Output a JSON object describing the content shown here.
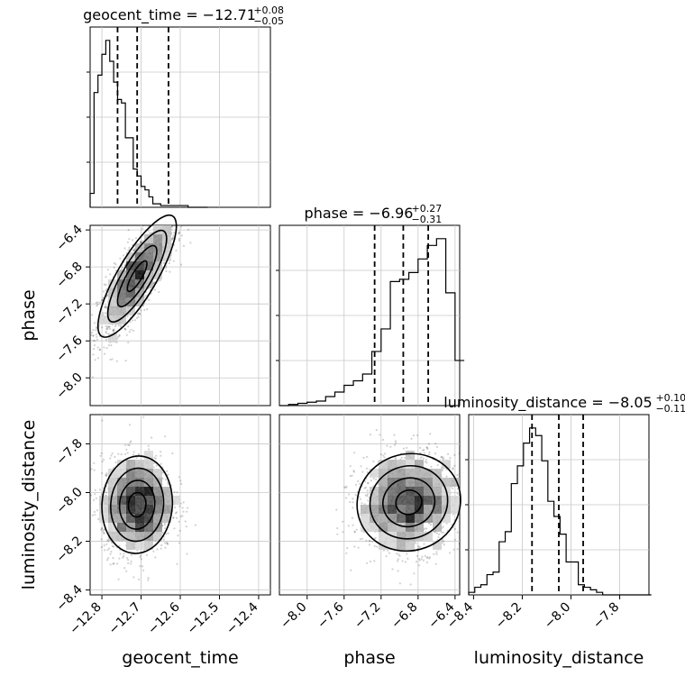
{
  "chart_data": {
    "type": "corner",
    "grid": true,
    "params": [
      {
        "name": "geocent_time",
        "label": "geocent_time",
        "range": [
          -12.83,
          -12.37
        ],
        "ticks": [
          -12.8,
          -12.7,
          -12.6,
          -12.5,
          -12.4
        ],
        "tick_labels": [
          "−12.8",
          "−12.7",
          "−12.6",
          "−12.5",
          "−12.4"
        ]
      },
      {
        "name": "phase",
        "label": "phase",
        "range": [
          -8.3,
          -6.35
        ],
        "ticks": [
          -8.0,
          -7.6,
          -7.2,
          -6.8,
          -6.4
        ],
        "tick_labels": [
          "−8.0",
          "−7.6",
          "−7.2",
          "−6.8",
          "−6.4"
        ]
      },
      {
        "name": "luminosity_distance",
        "label": "luminosity_distance",
        "range": [
          -8.42,
          -7.68
        ],
        "ticks": [
          -8.4,
          -8.2,
          -8.0,
          -7.8
        ],
        "tick_labels": [
          "−8.4",
          "−8.2",
          "−8.0",
          "−7.8"
        ]
      }
    ],
    "titles": [
      {
        "param": "geocent_time",
        "prefix": "geocent_time = ",
        "value": "−12.71",
        "plus": "+0.08",
        "minus": "−0.05"
      },
      {
        "param": "phase",
        "prefix": "phase = ",
        "value": "−6.96",
        "plus": "+0.27",
        "minus": "−0.31"
      },
      {
        "param": "luminosity_distance",
        "prefix": "luminosity_distance = ",
        "value": "−8.05",
        "plus": "+0.10",
        "minus": "−0.11"
      }
    ],
    "histograms": [
      {
        "param": "geocent_time",
        "x_start": -12.83,
        "bin_width": 0.01,
        "counts": [
          4,
          33,
          38,
          44,
          48,
          42,
          36,
          31,
          30,
          20,
          20,
          11,
          9,
          6,
          5,
          3,
          1,
          1,
          0.5,
          0.5,
          0.5,
          0.5,
          0.5,
          0.5,
          0.5,
          0,
          0,
          0,
          0,
          0
        ],
        "quantiles": [
          -12.76,
          -12.71,
          -12.63
        ]
      },
      {
        "param": "phase",
        "x_start": -8.3,
        "bin_width": 0.1,
        "counts": [
          0,
          0.5,
          1,
          1.5,
          2,
          4,
          6,
          9,
          11,
          14,
          24,
          34,
          55,
          56,
          59,
          65,
          71,
          74,
          50,
          20
        ],
        "quantiles": [
          -7.27,
          -6.96,
          -6.69
        ]
      },
      {
        "param": "luminosity_distance",
        "x_start": -8.42,
        "bin_width": 0.025,
        "counts": [
          1,
          3,
          4,
          8,
          9,
          21,
          25,
          44,
          51,
          60,
          66,
          63,
          53,
          37,
          31,
          24,
          13,
          13,
          4,
          3,
          2,
          1,
          0,
          0,
          0,
          0,
          0,
          0,
          0,
          0
        ],
        "quantiles": [
          -8.16,
          -8.05,
          -7.95
        ]
      }
    ],
    "scatter_2d": [
      {
        "x": "geocent_time",
        "y": "phase",
        "center": [
          -12.71,
          -6.9
        ],
        "sigma": [
          0.05,
          0.33
        ],
        "rho": 0.82
      },
      {
        "x": "geocent_time",
        "y": "luminosity_distance",
        "center": [
          -12.71,
          -8.05
        ],
        "sigma": [
          0.045,
          0.1
        ],
        "rho": 0.05
      },
      {
        "x": "phase",
        "y": "luminosity_distance",
        "center": [
          -6.9,
          -8.04
        ],
        "sigma": [
          0.28,
          0.1
        ],
        "rho": 0.05
      }
    ]
  }
}
